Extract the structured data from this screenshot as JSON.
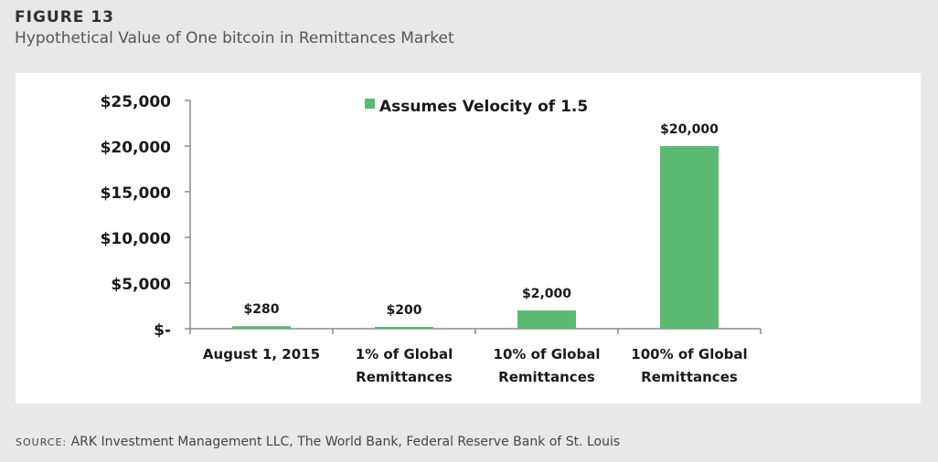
{
  "figure": {
    "label": "FIGURE 13",
    "subtitle": "Hypothetical Value of One bitcoin in Remittances Market"
  },
  "source": {
    "label": "SOURCE:",
    "text": "ARK Investment Management LLC, The World Bank, Federal Reserve Bank of St. Louis"
  },
  "colors": {
    "bar": "#5cb974",
    "axis": "#8c8c8c",
    "text": "#1a1a1a"
  },
  "chart_data": {
    "type": "bar",
    "title": "",
    "xlabel": "",
    "ylabel": "",
    "categories": [
      [
        "August 1, 2015"
      ],
      [
        "1% of Global",
        "Remittances"
      ],
      [
        "10% of Global",
        "Remittances"
      ],
      [
        "100% of Global",
        "Remittances"
      ]
    ],
    "series": [
      {
        "name": "Assumes Velocity of 1.5",
        "values": [
          280,
          200,
          2000,
          20000
        ],
        "labels": [
          "$280",
          "$200",
          "$2,000",
          "$20,000"
        ]
      }
    ],
    "ylim": [
      0,
      25000
    ],
    "yticks": [
      0,
      5000,
      10000,
      15000,
      20000,
      25000
    ],
    "ytick_labels": [
      "$-",
      "$5,000",
      "$10,000",
      "$15,000",
      "$20,000",
      "$25,000"
    ],
    "legend_position": "top-center",
    "grid": false
  }
}
